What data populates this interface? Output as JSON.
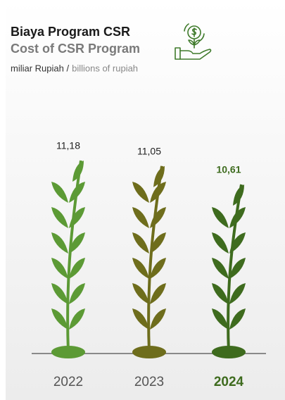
{
  "chart_data": {
    "type": "pictogram-bar",
    "title": "Biaya Program CSR",
    "subtitle": "Cost of CSR Program",
    "unit_local": "miliar Rupiah /",
    "unit_english": "billions of rupiah",
    "categories": [
      "2022",
      "2023",
      "2024"
    ],
    "values": [
      11.18,
      11.05,
      10.61
    ],
    "value_labels": [
      "11,18",
      "11,05",
      "10,61"
    ],
    "colors": [
      "#5c9a35",
      "#6e6d1c",
      "#3e6b1e"
    ],
    "highlight": 2
  }
}
